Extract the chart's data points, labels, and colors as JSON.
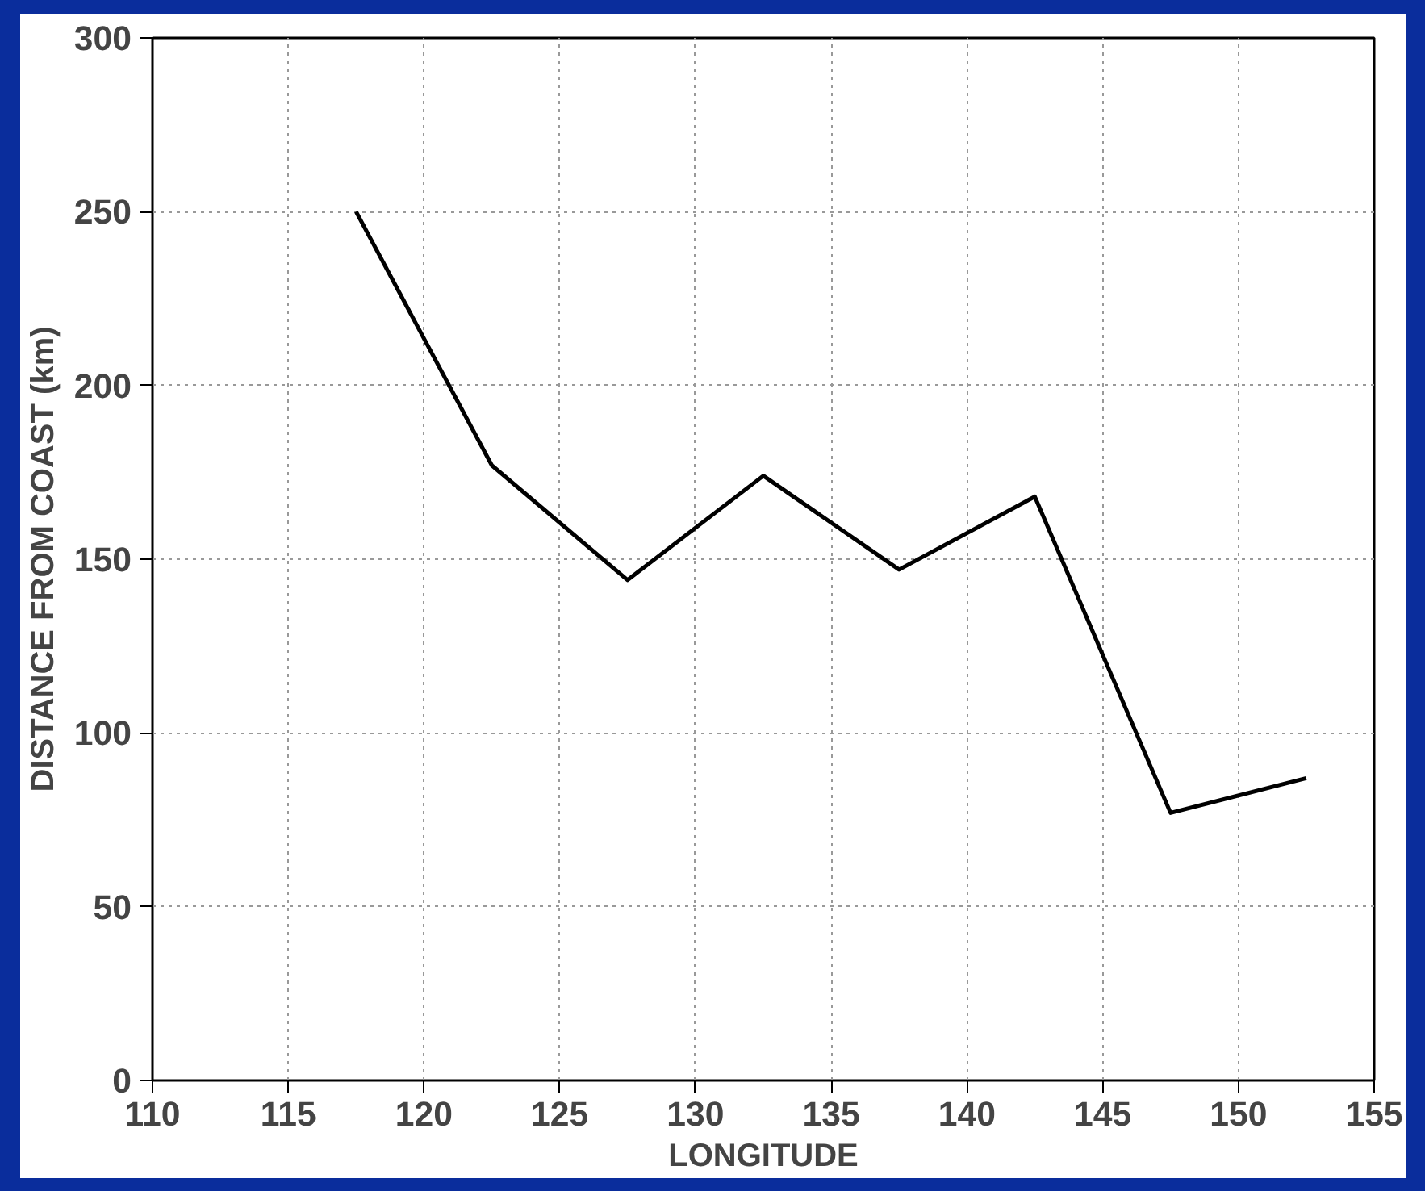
{
  "chart_data": {
    "type": "line",
    "xlabel": "LONGITUDE",
    "ylabel": "DISTANCE FROM COAST (km)",
    "x": [
      117.5,
      122.5,
      127.5,
      132.5,
      137.5,
      142.5,
      147.5,
      152.5
    ],
    "series": [
      {
        "color": "#000000",
        "values": [
          250,
          177,
          144,
          174,
          147,
          168,
          77,
          87
        ]
      }
    ],
    "xlim": [
      110,
      155
    ],
    "ylim": [
      0,
      300
    ],
    "xticks": [
      110,
      115,
      120,
      125,
      130,
      135,
      140,
      145,
      150,
      155
    ],
    "yticks": [
      0,
      50,
      100,
      150,
      200,
      250,
      300
    ],
    "grid": true,
    "line_style": "solid"
  }
}
